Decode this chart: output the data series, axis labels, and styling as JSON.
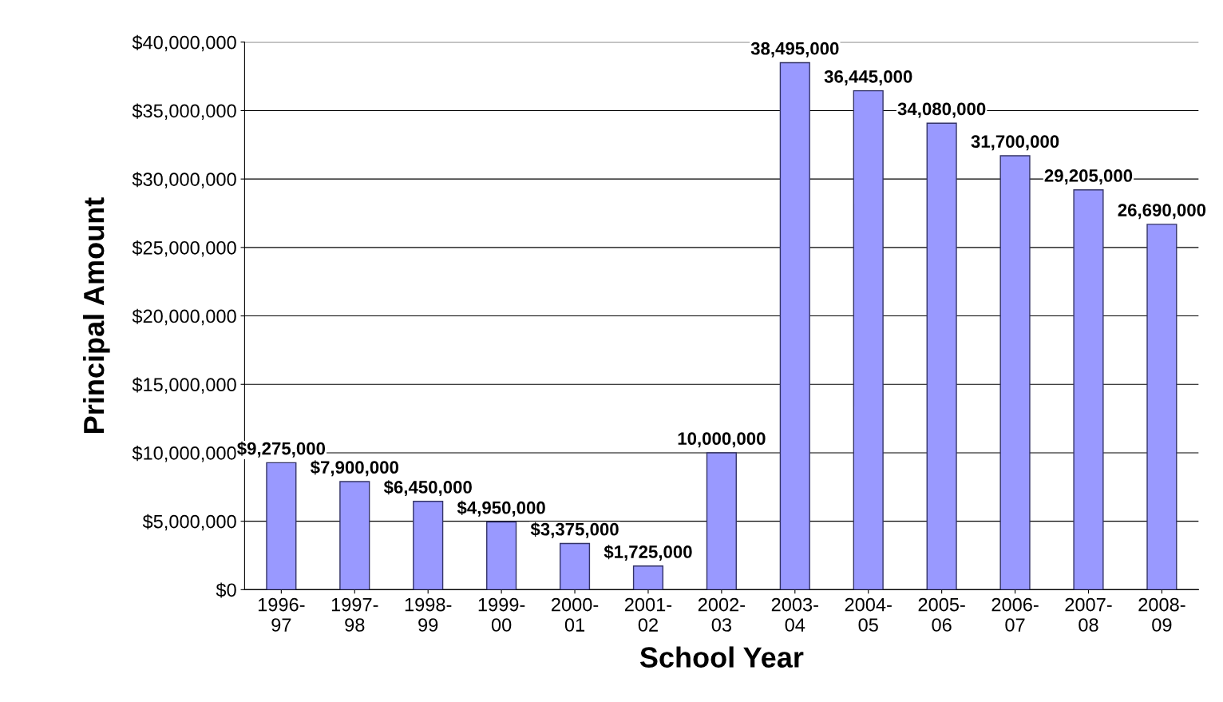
{
  "chart_data": {
    "type": "bar",
    "xlabel": "School Year",
    "ylabel": "Principal Amount",
    "categories": [
      "1996-97",
      "1997-98",
      "1998-99",
      "1999-00",
      "2000-01",
      "2001-02",
      "2002-03",
      "2003-04",
      "2004-05",
      "2005-06",
      "2006-07",
      "2007-08",
      "2008-09"
    ],
    "values": [
      9275000,
      7900000,
      6450000,
      4950000,
      3375000,
      1725000,
      10000000,
      38495000,
      36445000,
      34080000,
      31700000,
      29205000,
      26690000
    ],
    "value_labels": [
      "$9,275,000",
      "$7,900,000",
      "$6,450,000",
      "$4,950,000",
      "$3,375,000",
      "$1,725,000",
      "10,000,000",
      "38,495,000",
      "36,445,000",
      "34,080,000",
      "31,700,000",
      "29,205,000",
      "26,690,000"
    ],
    "color": "#9999ff",
    "ylim": [
      0,
      40000000
    ],
    "yticks": [
      {
        "value": 0,
        "label": "$0"
      },
      {
        "value": 5000000,
        "label": "$5,000,000"
      },
      {
        "value": 10000000,
        "label": "$10,000,000"
      },
      {
        "value": 15000000,
        "label": "$15,000,000"
      },
      {
        "value": 20000000,
        "label": "$20,000,000"
      },
      {
        "value": 25000000,
        "label": "$25,000,000"
      },
      {
        "value": 30000000,
        "label": "$30,000,000"
      },
      {
        "value": 35000000,
        "label": "$35,000,000"
      },
      {
        "value": 40000000,
        "label": "$40,000,000"
      }
    ],
    "grid": "y"
  }
}
